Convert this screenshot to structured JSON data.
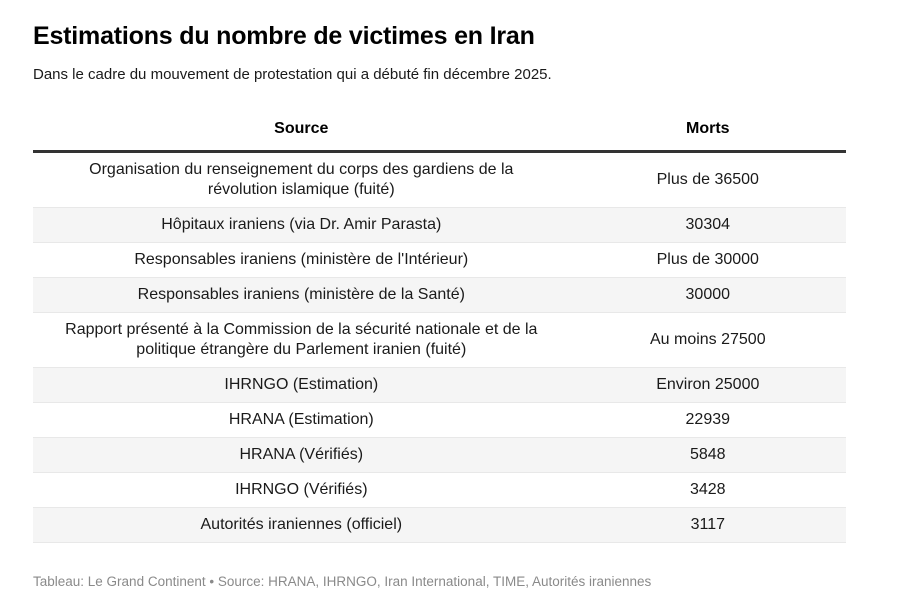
{
  "chart_data": {
    "type": "table",
    "title": "Estimations du nombre de victimes en Iran",
    "subtitle": "Dans le cadre du mouvement de protestation qui a débuté fin décembre 2025.",
    "columns": [
      "Source",
      "Morts"
    ],
    "rows": [
      [
        "Organisation du renseignement du corps des gardiens de la révolution islamique (fuité)",
        "Plus de 36500"
      ],
      [
        "Hôpitaux iraniens (via Dr. Amir Parasta)",
        "30304"
      ],
      [
        "Responsables iraniens (ministère de l'Intérieur)",
        "Plus de 30000"
      ],
      [
        "Responsables iraniens (ministère de la Santé)",
        "30000"
      ],
      [
        "Rapport présenté à la Commission de la sécurité nationale et de la politique étrangère du Parlement iranien (fuité)",
        "Au moins 27500"
      ],
      [
        "IHRNGO (Estimation)",
        "Environ 25000"
      ],
      [
        "HRANA (Estimation)",
        "22939"
      ],
      [
        "HRANA (Vérifiés)",
        "5848"
      ],
      [
        "IHRNGO (Vérifiés)",
        "3428"
      ],
      [
        "Autorités iraniennes (officiel)",
        "3117"
      ]
    ],
    "footer": "Tableau: Le Grand Continent • Source: HRANA, IHRNGO, Iran International, TIME, Autorités iraniennes",
    "layout": {
      "striped_rows": true,
      "stripe_on": "even",
      "text_align": "center"
    }
  },
  "colors": {
    "text_color": "#1a1a1a",
    "title_color": "#000000",
    "stripe_color": "#f5f5f5",
    "row_border_color": "#e8e8e8",
    "header_rule_color": "#333333",
    "footer_text_color": "#8a8a8a",
    "page_bg": "#ffffff"
  }
}
